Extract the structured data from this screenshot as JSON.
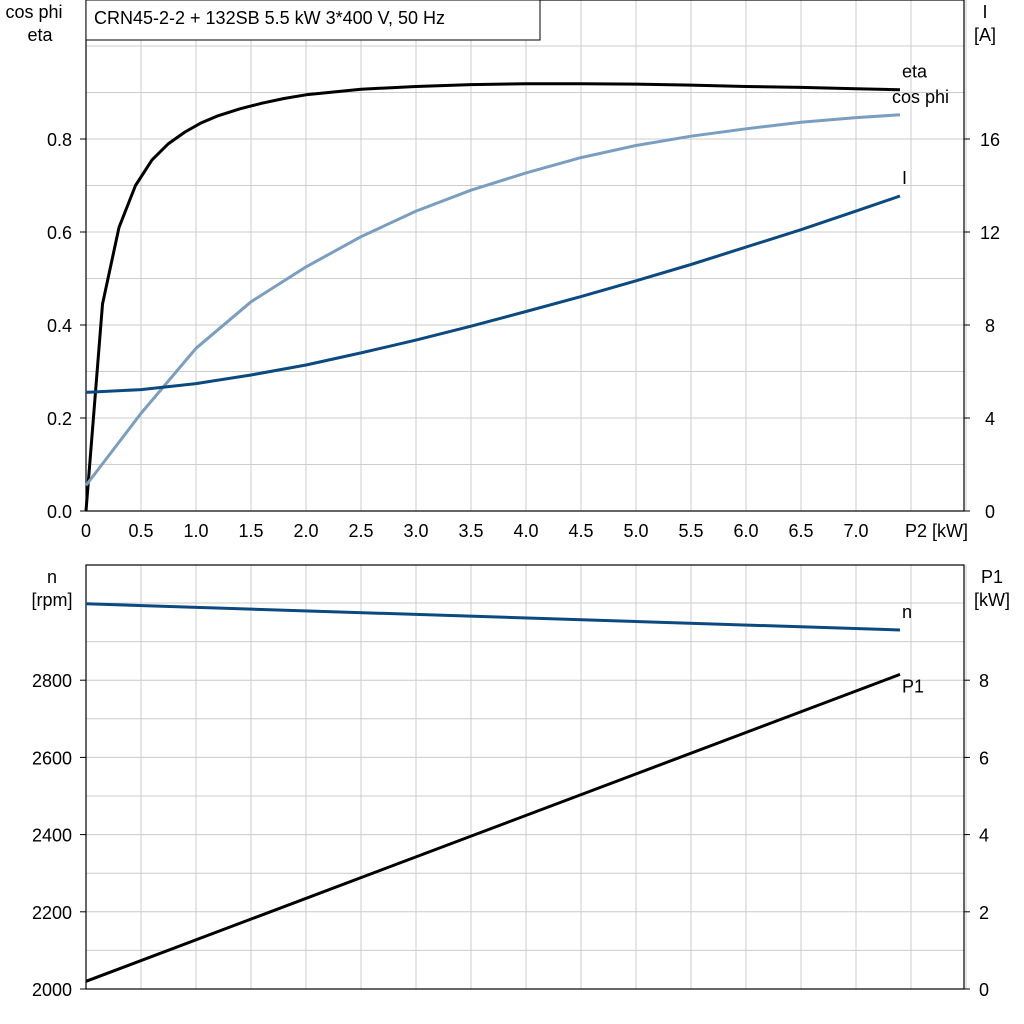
{
  "title": "CRN45-2-2 + 132SB   5.5 kW   3*400 V, 50 Hz",
  "colors": {
    "eta": "#000000",
    "cosphi": "#7a9ec0",
    "current": "#0b4a80",
    "n": "#0b4a80",
    "P1": "#000000"
  },
  "chart_data": [
    {
      "type": "line",
      "xlabel": "P2 [kW]",
      "x_ticks": [
        "0",
        "0.5",
        "1.0",
        "1.5",
        "2.0",
        "2.5",
        "3.0",
        "3.5",
        "4.0",
        "4.5",
        "5.0",
        "5.5",
        "6.0",
        "6.5",
        "7.0"
      ],
      "xlim": [
        0,
        8
      ],
      "ylabel_left": [
        "cos phi",
        "eta"
      ],
      "ylabel_right": [
        "I",
        "[A]"
      ],
      "y_left_ticks": [
        "0.0",
        "0.2",
        "0.4",
        "0.6",
        "0.8"
      ],
      "y_right_ticks": [
        "0",
        "4",
        "8",
        "12",
        "16"
      ],
      "ylim_left": [
        0,
        1.0
      ],
      "ylim_right": [
        0,
        20
      ],
      "grid": true,
      "series": [
        {
          "name": "eta",
          "axis": "left",
          "color_key": "eta",
          "x": [
            0,
            0.15,
            0.3,
            0.45,
            0.6,
            0.75,
            0.9,
            1.05,
            1.2,
            1.4,
            1.6,
            1.8,
            2.0,
            2.5,
            3.0,
            3.5,
            4.0,
            4.5,
            5.0,
            5.5,
            6.0,
            6.5,
            7.0,
            7.4
          ],
          "y": [
            0.0,
            0.445,
            0.61,
            0.7,
            0.755,
            0.79,
            0.815,
            0.835,
            0.85,
            0.865,
            0.877,
            0.887,
            0.895,
            0.907,
            0.913,
            0.917,
            0.919,
            0.919,
            0.918,
            0.916,
            0.913,
            0.911,
            0.908,
            0.906
          ]
        },
        {
          "name": "cos phi",
          "axis": "left",
          "color_key": "cosphi",
          "x": [
            0,
            0.5,
            1.0,
            1.5,
            2.0,
            2.5,
            3.0,
            3.5,
            4.0,
            4.5,
            5.0,
            5.5,
            6.0,
            6.5,
            7.0,
            7.4
          ],
          "y": [
            0.055,
            0.21,
            0.35,
            0.45,
            0.525,
            0.59,
            0.645,
            0.69,
            0.727,
            0.76,
            0.786,
            0.806,
            0.822,
            0.836,
            0.846,
            0.852
          ]
        },
        {
          "name": "I",
          "axis": "right",
          "color_key": "current",
          "x": [
            0,
            0.5,
            1.0,
            1.5,
            2.0,
            2.5,
            3.0,
            3.5,
            4.0,
            4.5,
            5.0,
            5.5,
            6.0,
            6.5,
            7.0,
            7.4
          ],
          "y": [
            5.1,
            5.22,
            5.48,
            5.85,
            6.28,
            6.8,
            7.35,
            7.95,
            8.58,
            9.22,
            9.9,
            10.6,
            11.35,
            12.1,
            12.9,
            13.55
          ]
        }
      ]
    },
    {
      "type": "line",
      "ylabel_left": [
        "n",
        "[rpm]"
      ],
      "ylabel_right": [
        "P1",
        "[kW]"
      ],
      "y_left_ticks": [
        "2000",
        "2200",
        "2400",
        "2600",
        "2800"
      ],
      "y_right_ticks": [
        "0",
        "2",
        "4",
        "6",
        "8"
      ],
      "xlim": [
        0,
        8
      ],
      "ylim_left": [
        2000,
        3100
      ],
      "ylim_right": [
        0,
        11
      ],
      "grid": true,
      "series": [
        {
          "name": "n",
          "axis": "left",
          "color_key": "n",
          "x": [
            0,
            7.4
          ],
          "y": [
            2998,
            2930
          ]
        },
        {
          "name": "P1",
          "axis": "right",
          "color_key": "P1",
          "x": [
            0,
            7.4
          ],
          "y": [
            0.2,
            8.15
          ]
        }
      ]
    }
  ]
}
